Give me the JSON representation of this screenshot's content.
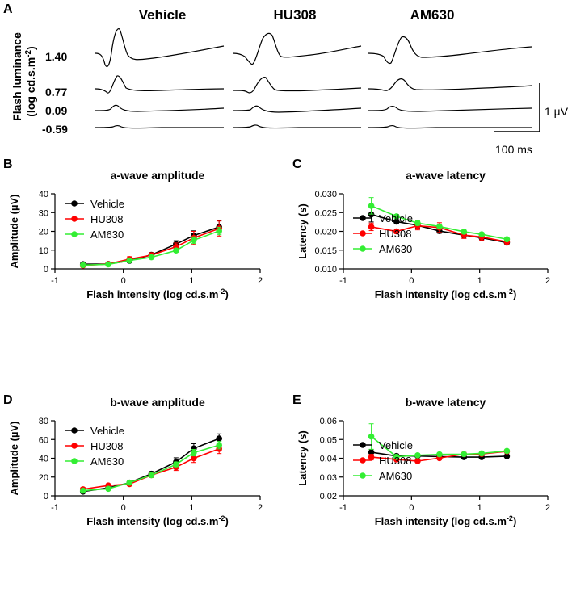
{
  "panel_a": {
    "letter": "A",
    "columns": [
      "Vehicle",
      "HU308",
      "AM630"
    ],
    "ylabel_line1": "Flash luminance",
    "ylabel_line2": "(log cd.s.m",
    "ylabel_sup": "-2",
    "ylabel_close": ")",
    "intensity_labels": [
      "1.40",
      "0.77",
      "0.09",
      "-0.59"
    ],
    "scale_v_label": "1 µV",
    "scale_t_label": "100 ms"
  },
  "chart_data": [
    {
      "panel": "B",
      "type": "line",
      "title": "a-wave amplitude",
      "xlabel": "Flash intensity (log cd.s.m",
      "xlabel_sup": "-2",
      "xlabel_close": ")",
      "ylabel": "Amplitude (µV)",
      "xlim": [
        -1,
        2
      ],
      "ylim": [
        0,
        40
      ],
      "xticks": [
        -1,
        0,
        1,
        2
      ],
      "yticks": [
        0,
        10,
        20,
        30,
        40
      ],
      "ytick_labels": [
        "0",
        "10",
        "20",
        "30",
        "40"
      ],
      "legend": "top-left",
      "x": [
        -0.59,
        -0.22,
        0.09,
        0.41,
        0.77,
        1.03,
        1.4
      ],
      "series": [
        {
          "name": "Vehicle",
          "color": "#000000",
          "values": [
            2.5,
            2.6,
            4.3,
            7.5,
            13.2,
            17.8,
            22.3
          ],
          "errors": [
            0.5,
            0.5,
            1.0,
            1.2,
            1.8,
            2.5,
            3.3
          ]
        },
        {
          "name": "HU308",
          "color": "#ff0000",
          "values": [
            1.8,
            2.6,
            5.2,
            7.3,
            11.8,
            16.5,
            21.5
          ],
          "errors": [
            0.5,
            0.5,
            1.3,
            1.3,
            2.0,
            3.5,
            4.0
          ]
        },
        {
          "name": "AM630",
          "color": "#33ee33",
          "values": [
            2.0,
            2.4,
            4.5,
            6.2,
            9.8,
            15.3,
            20.2
          ],
          "errors": [
            0.4,
            0.4,
            0.8,
            0.8,
            1.0,
            1.8,
            2.0
          ]
        }
      ]
    },
    {
      "panel": "C",
      "type": "line",
      "title": "a-wave latency",
      "xlabel": "Flash intensity (log cd.s.m",
      "xlabel_sup": "-2",
      "xlabel_close": ")",
      "ylabel": "Latency (s)",
      "xlim": [
        -1,
        2
      ],
      "ylim": [
        0.01,
        0.03
      ],
      "xticks": [
        -1,
        0,
        1,
        2
      ],
      "yticks": [
        0.01,
        0.015,
        0.02,
        0.025,
        0.03
      ],
      "ytick_labels": [
        "0.010",
        "0.015",
        "0.020",
        "0.025",
        "0.030"
      ],
      "legend": "bottom-left",
      "x": [
        -0.59,
        -0.22,
        0.09,
        0.41,
        0.77,
        1.03,
        1.4
      ],
      "series": [
        {
          "name": "Vehicle",
          "color": "#000000",
          "values": [
            0.0245,
            0.0226,
            0.0216,
            0.0201,
            0.019,
            0.0183,
            0.017
          ],
          "errors": [
            0.002,
            0.0005,
            0.0008,
            0.0006,
            0.0008,
            0.0008,
            0.0005
          ]
        },
        {
          "name": "HU308",
          "color": "#ff0000",
          "values": [
            0.0212,
            0.02,
            0.0215,
            0.021,
            0.019,
            0.0185,
            0.0172
          ],
          "errors": [
            0.001,
            0.0006,
            0.0011,
            0.0013,
            0.0009,
            0.0009,
            0.0006
          ]
        },
        {
          "name": "AM630",
          "color": "#33ee33",
          "values": [
            0.0268,
            0.024,
            0.0222,
            0.0213,
            0.0199,
            0.0192,
            0.0179
          ],
          "errors": [
            0.0022,
            0.0005,
            0.0006,
            0.0006,
            0.0005,
            0.0005,
            0.0004
          ]
        }
      ]
    },
    {
      "panel": "D",
      "type": "line",
      "title": "b-wave amplitude",
      "xlabel": "Flash intensity (log cd.s.m",
      "xlabel_sup": "-2",
      "xlabel_close": ")",
      "ylabel": "Amplitude (µV)",
      "xlim": [
        -1,
        2
      ],
      "ylim": [
        0,
        80
      ],
      "xticks": [
        -1,
        0,
        1,
        2
      ],
      "yticks": [
        0,
        20,
        40,
        60,
        80
      ],
      "ytick_labels": [
        "0",
        "20",
        "40",
        "60",
        "80"
      ],
      "legend": "top-left",
      "x": [
        -0.59,
        -0.22,
        0.09,
        0.41,
        0.77,
        1.03,
        1.4
      ],
      "series": [
        {
          "name": "Vehicle",
          "color": "#000000",
          "values": [
            4.5,
            8.5,
            14.0,
            23.5,
            36.0,
            50.5,
            61.0
          ],
          "errors": [
            0.7,
            1.0,
            1.5,
            2.5,
            4.5,
            5.0,
            5.0
          ]
        },
        {
          "name": "HU308",
          "color": "#ff0000",
          "values": [
            7.0,
            11.0,
            12.5,
            22.0,
            30.5,
            40.0,
            50.0
          ],
          "errors": [
            0.8,
            1.0,
            1.5,
            2.5,
            3.5,
            4.5,
            5.0
          ]
        },
        {
          "name": "AM630",
          "color": "#33ee33",
          "values": [
            5.5,
            7.5,
            14.0,
            22.0,
            33.5,
            46.0,
            54.0
          ],
          "errors": [
            0.6,
            0.8,
            1.2,
            2.0,
            2.5,
            3.5,
            4.0
          ]
        }
      ]
    },
    {
      "panel": "E",
      "type": "line",
      "title": "b-wave latency",
      "xlabel": "Flash intensity (log cd.s.m",
      "xlabel_sup": "-2",
      "xlabel_close": ")",
      "ylabel": "Latency (s)",
      "xlim": [
        -1,
        2
      ],
      "ylim": [
        0.02,
        0.06
      ],
      "xticks": [
        -1,
        0,
        1,
        2
      ],
      "yticks": [
        0.02,
        0.03,
        0.04,
        0.05,
        0.06
      ],
      "ytick_labels": [
        "0.02",
        "0.03",
        "0.04",
        "0.05",
        "0.06"
      ],
      "legend": "bottom-left",
      "x": [
        -0.59,
        -0.22,
        0.09,
        0.41,
        0.77,
        1.03,
        1.4
      ],
      "series": [
        {
          "name": "Vehicle",
          "color": "#000000",
          "values": [
            0.0432,
            0.0412,
            0.0412,
            0.0409,
            0.0406,
            0.0406,
            0.0411
          ],
          "errors": [
            0.0015,
            0.001,
            0.0008,
            0.0006,
            0.0005,
            0.0005,
            0.0005
          ]
        },
        {
          "name": "HU308",
          "color": "#ff0000",
          "values": [
            0.0406,
            0.0394,
            0.0385,
            0.0401,
            0.0422,
            0.0423,
            0.0437
          ],
          "errors": [
            0.0015,
            0.0008,
            0.0008,
            0.0008,
            0.001,
            0.001,
            0.001
          ]
        },
        {
          "name": "AM630",
          "color": "#33ee33",
          "values": [
            0.0516,
            0.0408,
            0.0416,
            0.0421,
            0.0422,
            0.0426,
            0.0439
          ],
          "errors": [
            0.0068,
            0.0008,
            0.0008,
            0.0006,
            0.0006,
            0.0006,
            0.0006
          ]
        }
      ]
    }
  ]
}
